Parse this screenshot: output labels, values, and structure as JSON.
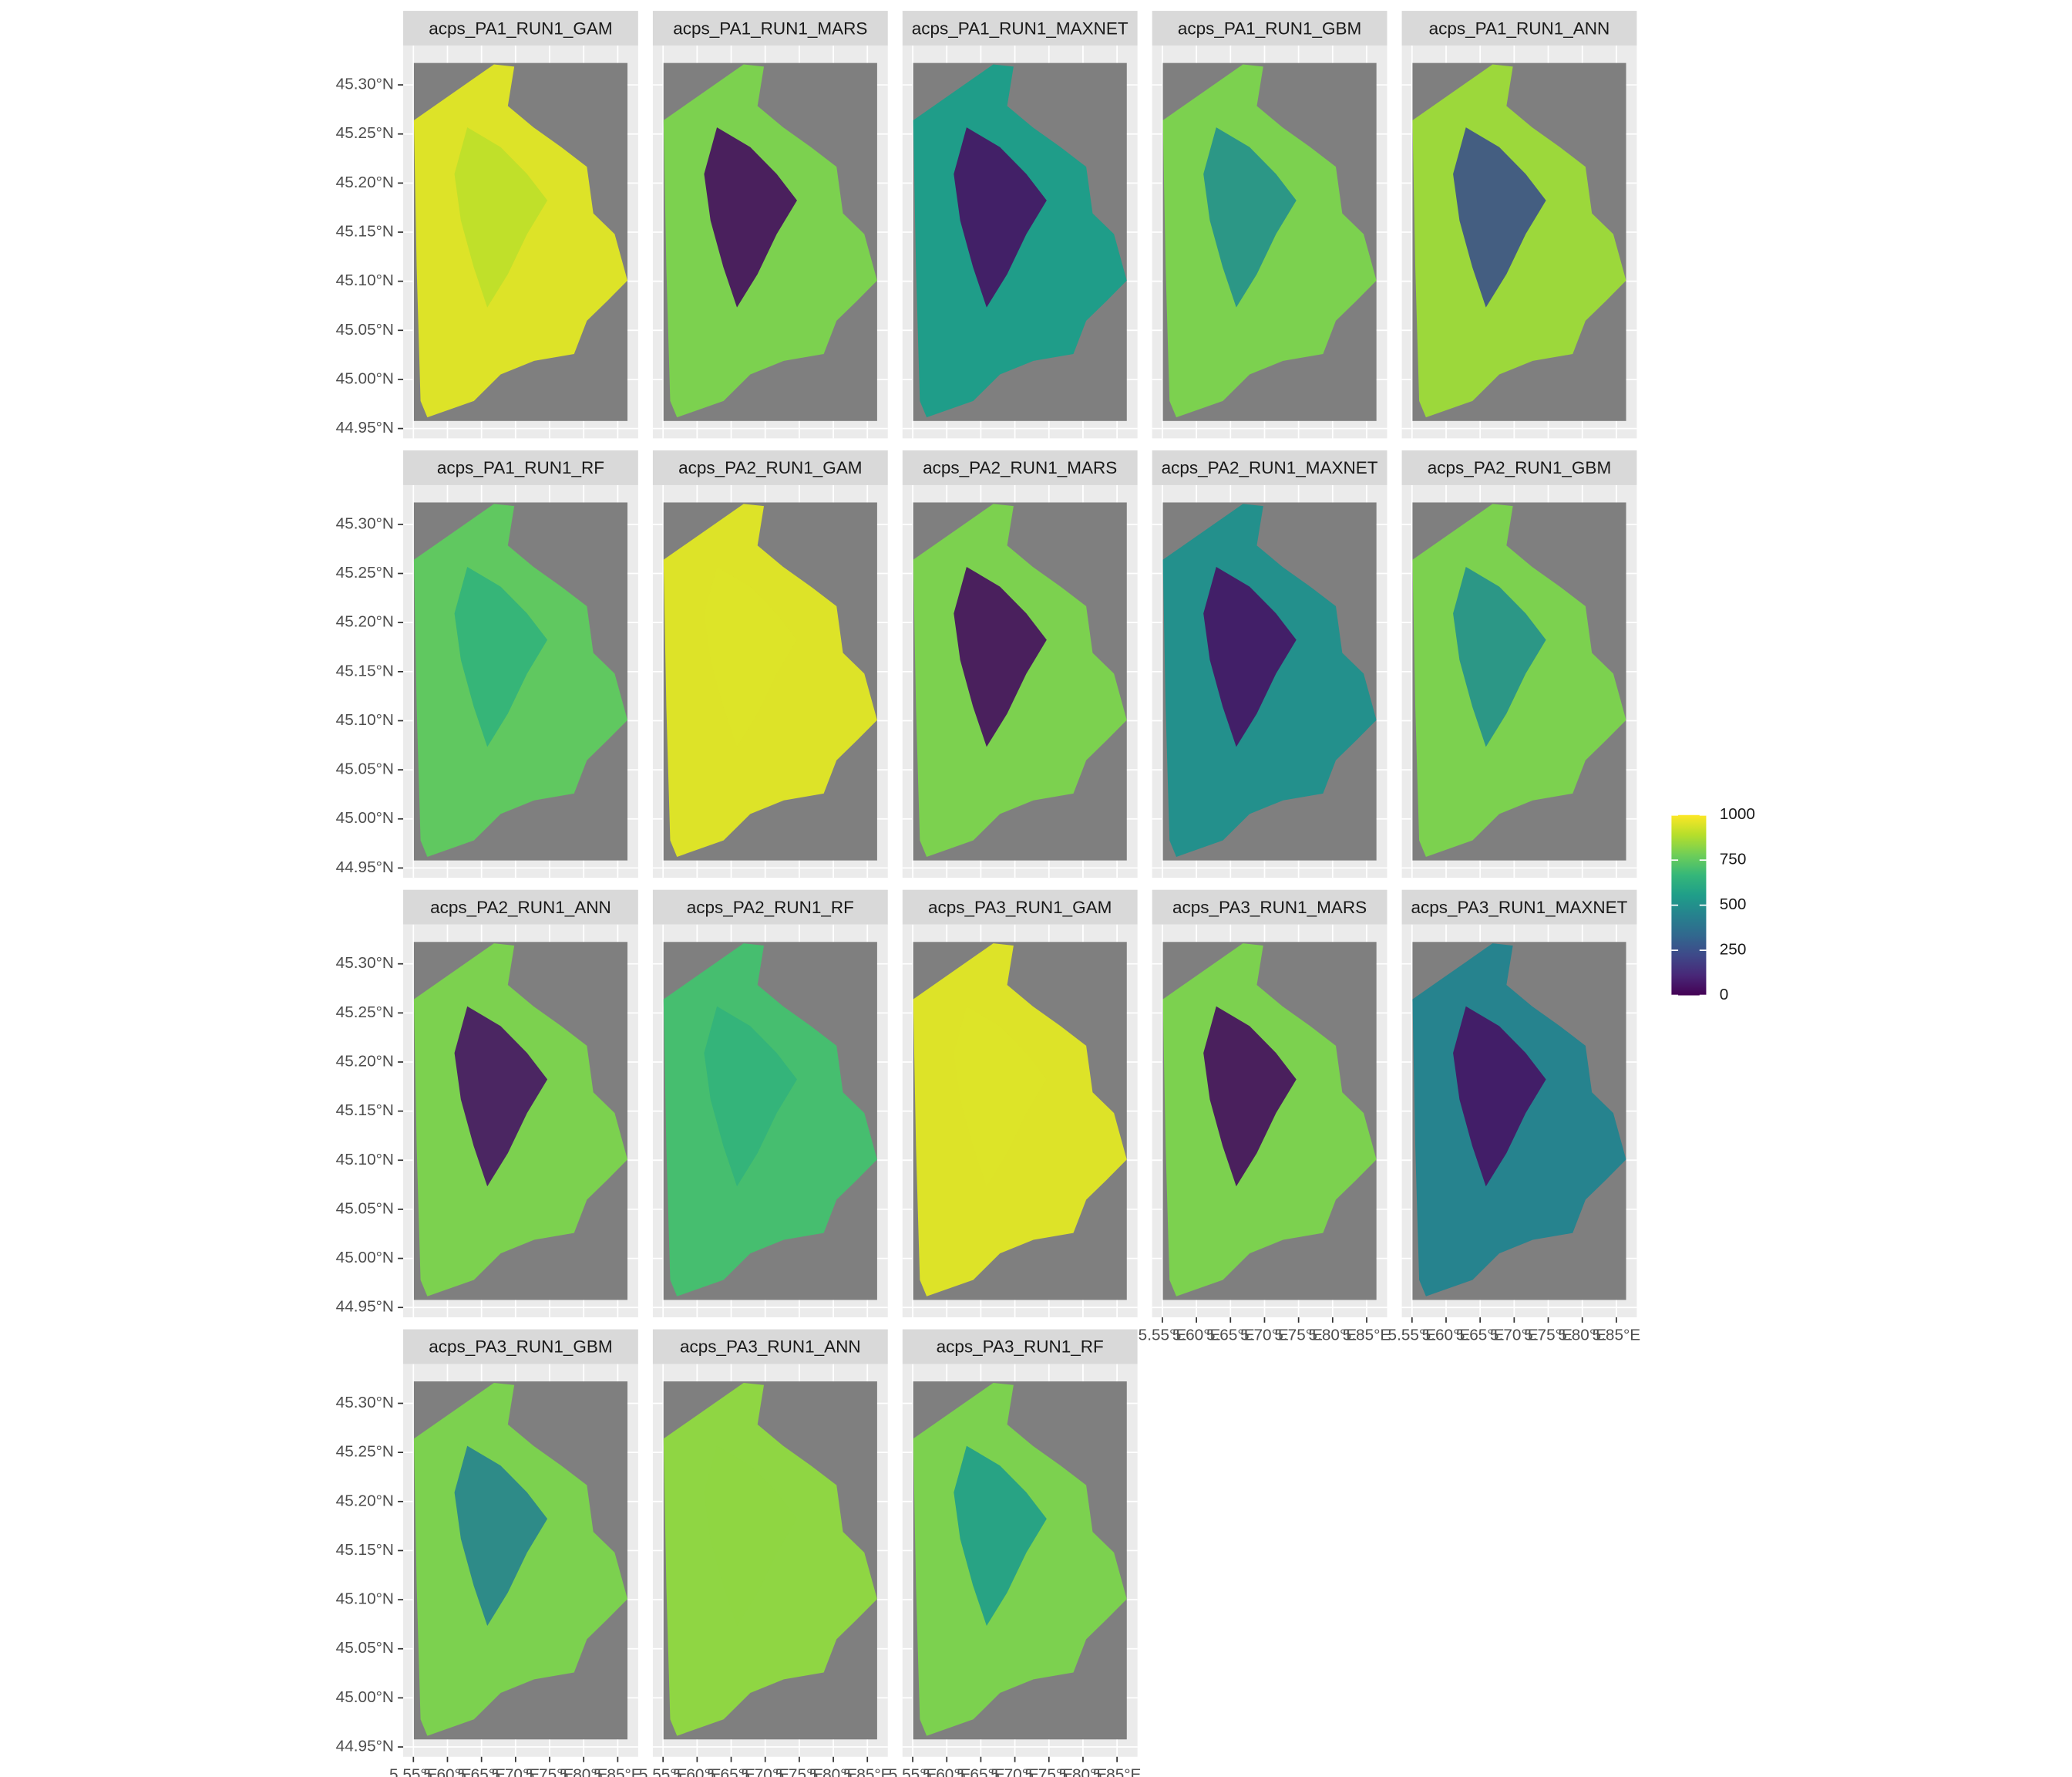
{
  "panels": [
    {
      "title": "acps_PA1_RUN1_GAM",
      "value": 950,
      "core_value": 900
    },
    {
      "title": "acps_PA1_RUN1_MARS",
      "value": 800,
      "core_value": 30
    },
    {
      "title": "acps_PA1_RUN1_MAXNET",
      "value": 550,
      "core_value": 50
    },
    {
      "title": "acps_PA1_RUN1_GBM",
      "value": 800,
      "core_value": 500
    },
    {
      "title": "acps_PA1_RUN1_ANN",
      "value": 850,
      "core_value": 250
    },
    {
      "title": "acps_PA1_RUN1_RF",
      "value": 750,
      "core_value": 650
    },
    {
      "title": "acps_PA2_RUN1_GAM",
      "value": 950,
      "core_value": 950
    },
    {
      "title": "acps_PA2_RUN1_MARS",
      "value": 800,
      "core_value": 30
    },
    {
      "title": "acps_PA2_RUN1_MAXNET",
      "value": 500,
      "core_value": 50
    },
    {
      "title": "acps_PA2_RUN1_GBM",
      "value": 800,
      "core_value": 500
    },
    {
      "title": "acps_PA2_RUN1_ANN",
      "value": 800,
      "core_value": 50
    },
    {
      "title": "acps_PA2_RUN1_RF",
      "value": 700,
      "core_value": 650
    },
    {
      "title": "acps_PA3_RUN1_GAM",
      "value": 950,
      "core_value": 950
    },
    {
      "title": "acps_PA3_RUN1_MARS",
      "value": 800,
      "core_value": 30
    },
    {
      "title": "acps_PA3_RUN1_MAXNET",
      "value": 450,
      "core_value": 50
    },
    {
      "title": "acps_PA3_RUN1_GBM",
      "value": 800,
      "core_value": 450
    },
    {
      "title": "acps_PA3_RUN1_ANN",
      "value": 830,
      "core_value": 830
    },
    {
      "title": "acps_PA3_RUN1_RF",
      "value": 800,
      "core_value": 550
    }
  ],
  "ncol": 5,
  "xlim": [
    5.535,
    5.88
  ],
  "ylim": [
    44.94,
    45.34
  ],
  "yticks": [
    {
      "value": 44.95,
      "label": "44.95°N"
    },
    {
      "value": 45.0,
      "label": "45.00°N"
    },
    {
      "value": 45.05,
      "label": "45.05°N"
    },
    {
      "value": 45.1,
      "label": "45.10°N"
    },
    {
      "value": 45.15,
      "label": "45.15°N"
    },
    {
      "value": 45.2,
      "label": "45.20°N"
    },
    {
      "value": 45.25,
      "label": "45.25°N"
    },
    {
      "value": 45.3,
      "label": "45.30°N"
    }
  ],
  "xticks": [
    {
      "value": 5.55,
      "label": "5.55°E"
    },
    {
      "value": 5.6,
      "label": "5.60°E"
    },
    {
      "value": 5.65,
      "label": "5.65°E"
    },
    {
      "value": 5.7,
      "label": "5.70°E"
    },
    {
      "value": 5.75,
      "label": "5.75°E"
    },
    {
      "value": 5.8,
      "label": "5.80°E"
    },
    {
      "value": 5.85,
      "label": "5.85°E"
    }
  ],
  "legend": {
    "lim": [
      0,
      1000
    ],
    "ticks": [
      0,
      250,
      500,
      750,
      1000
    ],
    "colors": [
      "#440154",
      "#482878",
      "#3e4989",
      "#31688e",
      "#26828e",
      "#1f9e89",
      "#35b779",
      "#6ece58",
      "#b5de2b",
      "#fde725"
    ]
  }
}
